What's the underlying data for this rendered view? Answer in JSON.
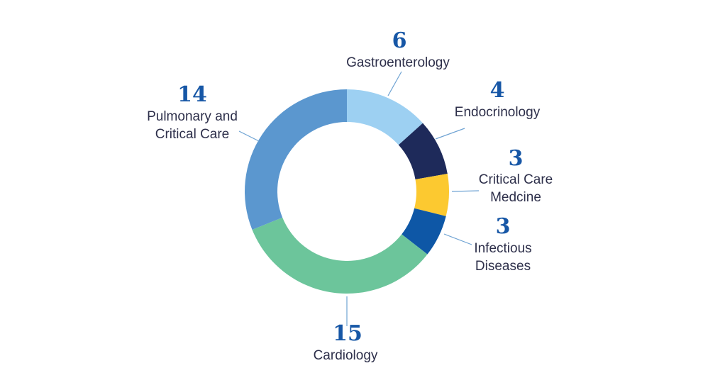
{
  "chart_data": {
    "type": "pie",
    "variant": "donut",
    "slices": [
      {
        "label": "Gastroenterology",
        "value": 6,
        "color": "#9dd0f2"
      },
      {
        "label": "Endocrinology",
        "value": 4,
        "color": "#1e2a5a"
      },
      {
        "label": "Critical Care Medcine",
        "label_lines": [
          "Critical Care",
          "Medcine"
        ],
        "value": 3,
        "color": "#fcc930"
      },
      {
        "label": "Infectious Diseases",
        "label_lines": [
          "Infectious",
          "Diseases"
        ],
        "value": 3,
        "color": "#0e57a6"
      },
      {
        "label": "Cardiology",
        "value": 15,
        "color": "#6cc59b"
      },
      {
        "label": "Pulmonary and Critical Care",
        "label_lines": [
          "Pulmonary and",
          "Critical Care"
        ],
        "value": 14,
        "color": "#5b97cf"
      }
    ]
  }
}
